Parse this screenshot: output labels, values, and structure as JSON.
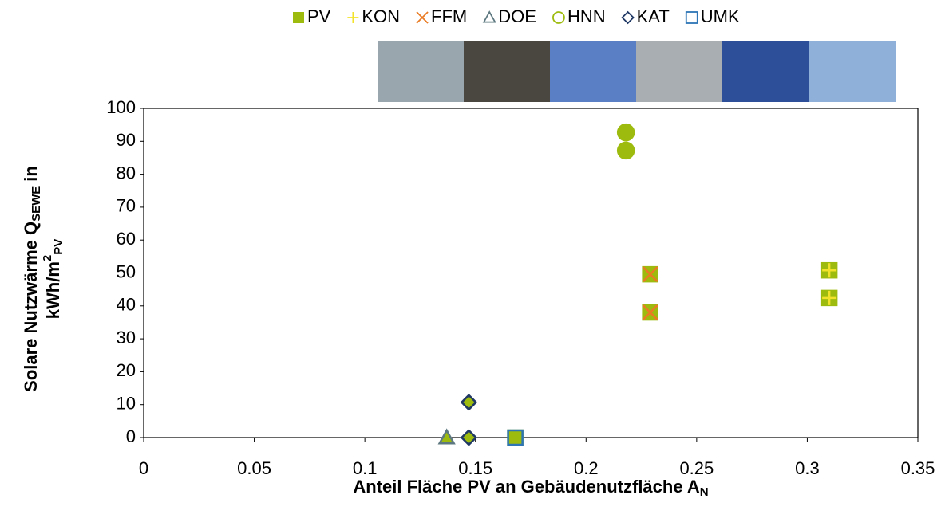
{
  "chart_data": {
    "type": "scatter",
    "xlabel": {
      "text": "Anteil Fläche PV an Gebäudenutzfläche A",
      "sub": "N"
    },
    "ylabel": {
      "line1": "Solare Nutzwärme Q",
      "line1_sub": "SEWE",
      "line1_end": "in",
      "line2": "kWh/m",
      "line2_sup": "2",
      "line2_sub": "PV"
    },
    "xlim": [
      0,
      0.35
    ],
    "xticks": [
      0,
      0.05,
      0.1,
      0.15,
      0.2,
      0.25,
      0.3,
      0.35
    ],
    "ylim": [
      0,
      100
    ],
    "yticks": [
      0,
      10,
      20,
      30,
      40,
      50,
      60,
      70,
      80,
      90,
      100
    ],
    "grid": false,
    "legend": "top",
    "series": [
      {
        "name": "PV",
        "color": "#9dbb0e",
        "marker": "square",
        "filled": true,
        "x": [
          0.168,
          0.229,
          0.229,
          0.31,
          0.31
        ],
        "values": [
          0,
          49.6,
          38,
          50.8,
          42.4
        ]
      },
      {
        "name": "KON",
        "color": "#f2e22a",
        "marker": "plus",
        "filled": false,
        "x": [
          0.31,
          0.31
        ],
        "values": [
          50.8,
          42.4
        ]
      },
      {
        "name": "FFM",
        "color": "#ea7b24",
        "marker": "cross",
        "filled": false,
        "x": [
          0.229,
          0.229
        ],
        "values": [
          49.6,
          38
        ]
      },
      {
        "name": "DOE",
        "color": "#5d7880",
        "marker": "triangle",
        "filled": false,
        "x": [
          0.137
        ],
        "values": [
          0
        ]
      },
      {
        "name": "HNN",
        "color": "#9dbb0e",
        "marker": "circle",
        "filled": false,
        "x": [
          0.218,
          0.218
        ],
        "values": [
          92.7,
          87.2
        ]
      },
      {
        "name": "KAT",
        "color": "#1f3864",
        "marker": "diamond",
        "filled": false,
        "x": [
          0.147,
          0.147
        ],
        "values": [
          10.7,
          0
        ]
      },
      {
        "name": "UMK",
        "color": "#2e75b6",
        "marker": "square",
        "filled": false,
        "x": [
          0.168
        ],
        "values": [
          0
        ]
      }
    ]
  }
}
